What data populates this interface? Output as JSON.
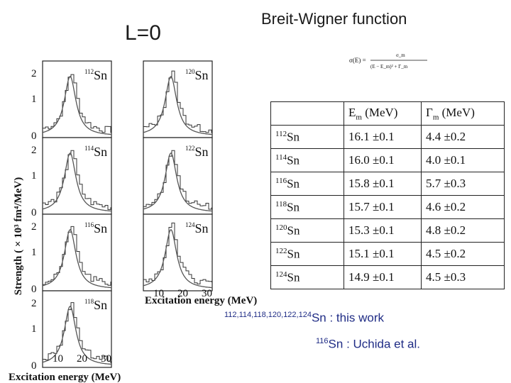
{
  "title": {
    "left": "L=0",
    "right": "Breit-Wigner function"
  },
  "figure": {
    "ylabel": "Strength ( × 10³ fm⁴/MeV)",
    "xlabel": "Excitation energy (MeV)",
    "yticks": [
      "2",
      "1",
      "0"
    ],
    "xticks": [
      "10",
      "20",
      "30"
    ],
    "panels_left": [
      "112Sn",
      "114Sn",
      "116Sn",
      "118Sn"
    ],
    "panels_right": [
      "120Sn",
      "122Sn",
      "124Sn"
    ]
  },
  "formula": {
    "lhs": "σ(E) =",
    "num": "σ_m",
    "den": "(E − E_m)² + Γ_m"
  },
  "table": {
    "headers": [
      "",
      "E_m (MeV)",
      "Γ_m (MeV)"
    ],
    "rows": [
      {
        "mass": "112",
        "el": "Sn",
        "em": "16.1 ±0.1",
        "gm": "4.4 ±0.2"
      },
      {
        "mass": "114",
        "el": "Sn",
        "em": "16.0 ±0.1",
        "gm": "4.0 ±0.1"
      },
      {
        "mass": "116",
        "el": "Sn",
        "em": "15.8 ±0.1",
        "gm": "5.7 ±0.3"
      },
      {
        "mass": "118",
        "el": "Sn",
        "em": "15.7 ±0.1",
        "gm": "4.6 ±0.2"
      },
      {
        "mass": "120",
        "el": "Sn",
        "em": "15.3 ±0.1",
        "gm": "4.8 ±0.2"
      },
      {
        "mass": "122",
        "el": "Sn",
        "em": "15.1 ±0.1",
        "gm": "4.5 ±0.2"
      },
      {
        "mass": "124",
        "el": "Sn",
        "em": "14.9 ±0.1",
        "gm": "4.5 ±0.3"
      }
    ]
  },
  "notes": [
    {
      "sup": "112,114,118,120,122,124",
      "el": "Sn",
      "sep": " : ",
      "text": "this work"
    },
    {
      "sup": "116",
      "el": "Sn",
      "sep": " : ",
      "text": "Uchida et al."
    }
  ]
}
